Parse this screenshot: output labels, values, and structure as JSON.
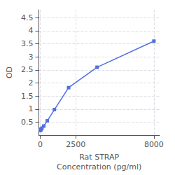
{
  "chart_data": {
    "type": "line",
    "xlabel": "Rat STRAP\nConcentration (pg/ml)",
    "ylabel": "OD",
    "x": [
      15.625,
      31.25,
      62.5,
      125,
      250,
      500,
      1000,
      2000,
      4000,
      8000
    ],
    "values": [
      0.18,
      0.2,
      0.23,
      0.27,
      0.35,
      0.55,
      0.98,
      1.82,
      2.6,
      3.6
    ],
    "marker": "square",
    "xlim": [
      -100,
      8400
    ],
    "xticks": [
      0,
      2500,
      8000
    ],
    "ylim": [
      0.0,
      4.8
    ],
    "yticks": [
      0.5,
      1,
      1.5,
      2,
      2.5,
      3,
      3.5,
      4,
      4.5
    ],
    "grid": true
  }
}
